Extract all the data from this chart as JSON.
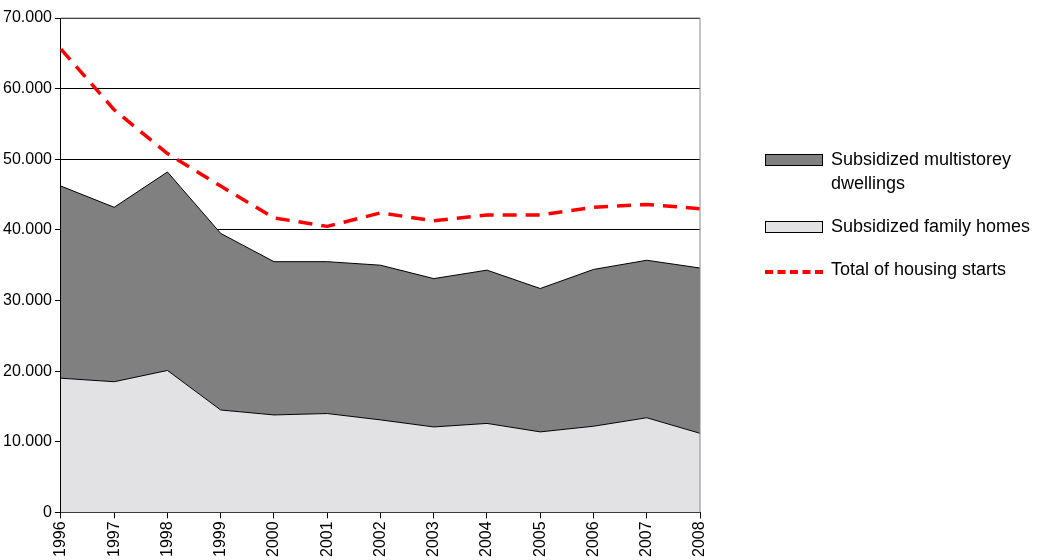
{
  "chart_data": {
    "type": "area",
    "stacked": true,
    "categories": [
      "1996",
      "1997",
      "1998",
      "1999",
      "2000",
      "2001",
      "2002",
      "2003",
      "2004",
      "2005",
      "2006",
      "2007",
      "2008"
    ],
    "series": [
      {
        "name": "Subsidized family homes",
        "color": "#e2e2e4",
        "values": [
          19000,
          18500,
          20100,
          14500,
          13800,
          14000,
          13100,
          12100,
          12600,
          11400,
          12200,
          13400,
          11200
        ]
      },
      {
        "name": "Subsidized multistorey dwellings",
        "color": "#808080",
        "values": [
          27200,
          24700,
          28100,
          25000,
          21700,
          21500,
          21900,
          21000,
          21700,
          20300,
          22200,
          22300,
          23400
        ]
      },
      {
        "name": "Total of housing starts",
        "type": "line",
        "color": "#ff0000",
        "line_style": "dashed",
        "values": [
          65600,
          57000,
          50800,
          46200,
          41700,
          40500,
          42400,
          41300,
          42100,
          42100,
          43200,
          43600,
          43000
        ]
      }
    ],
    "ylim": [
      0,
      70000
    ],
    "yticks": [
      {
        "value": 0,
        "label": "0"
      },
      {
        "value": 10000,
        "label": "10.000"
      },
      {
        "value": 20000,
        "label": "20.000"
      },
      {
        "value": 30000,
        "label": "30.000"
      },
      {
        "value": 40000,
        "label": "40.000"
      },
      {
        "value": 50000,
        "label": "50.000"
      },
      {
        "value": 60000,
        "label": "60.000"
      },
      {
        "value": 70000,
        "label": "70.000"
      }
    ],
    "grid": "y",
    "legend": "right",
    "marker": "none"
  }
}
